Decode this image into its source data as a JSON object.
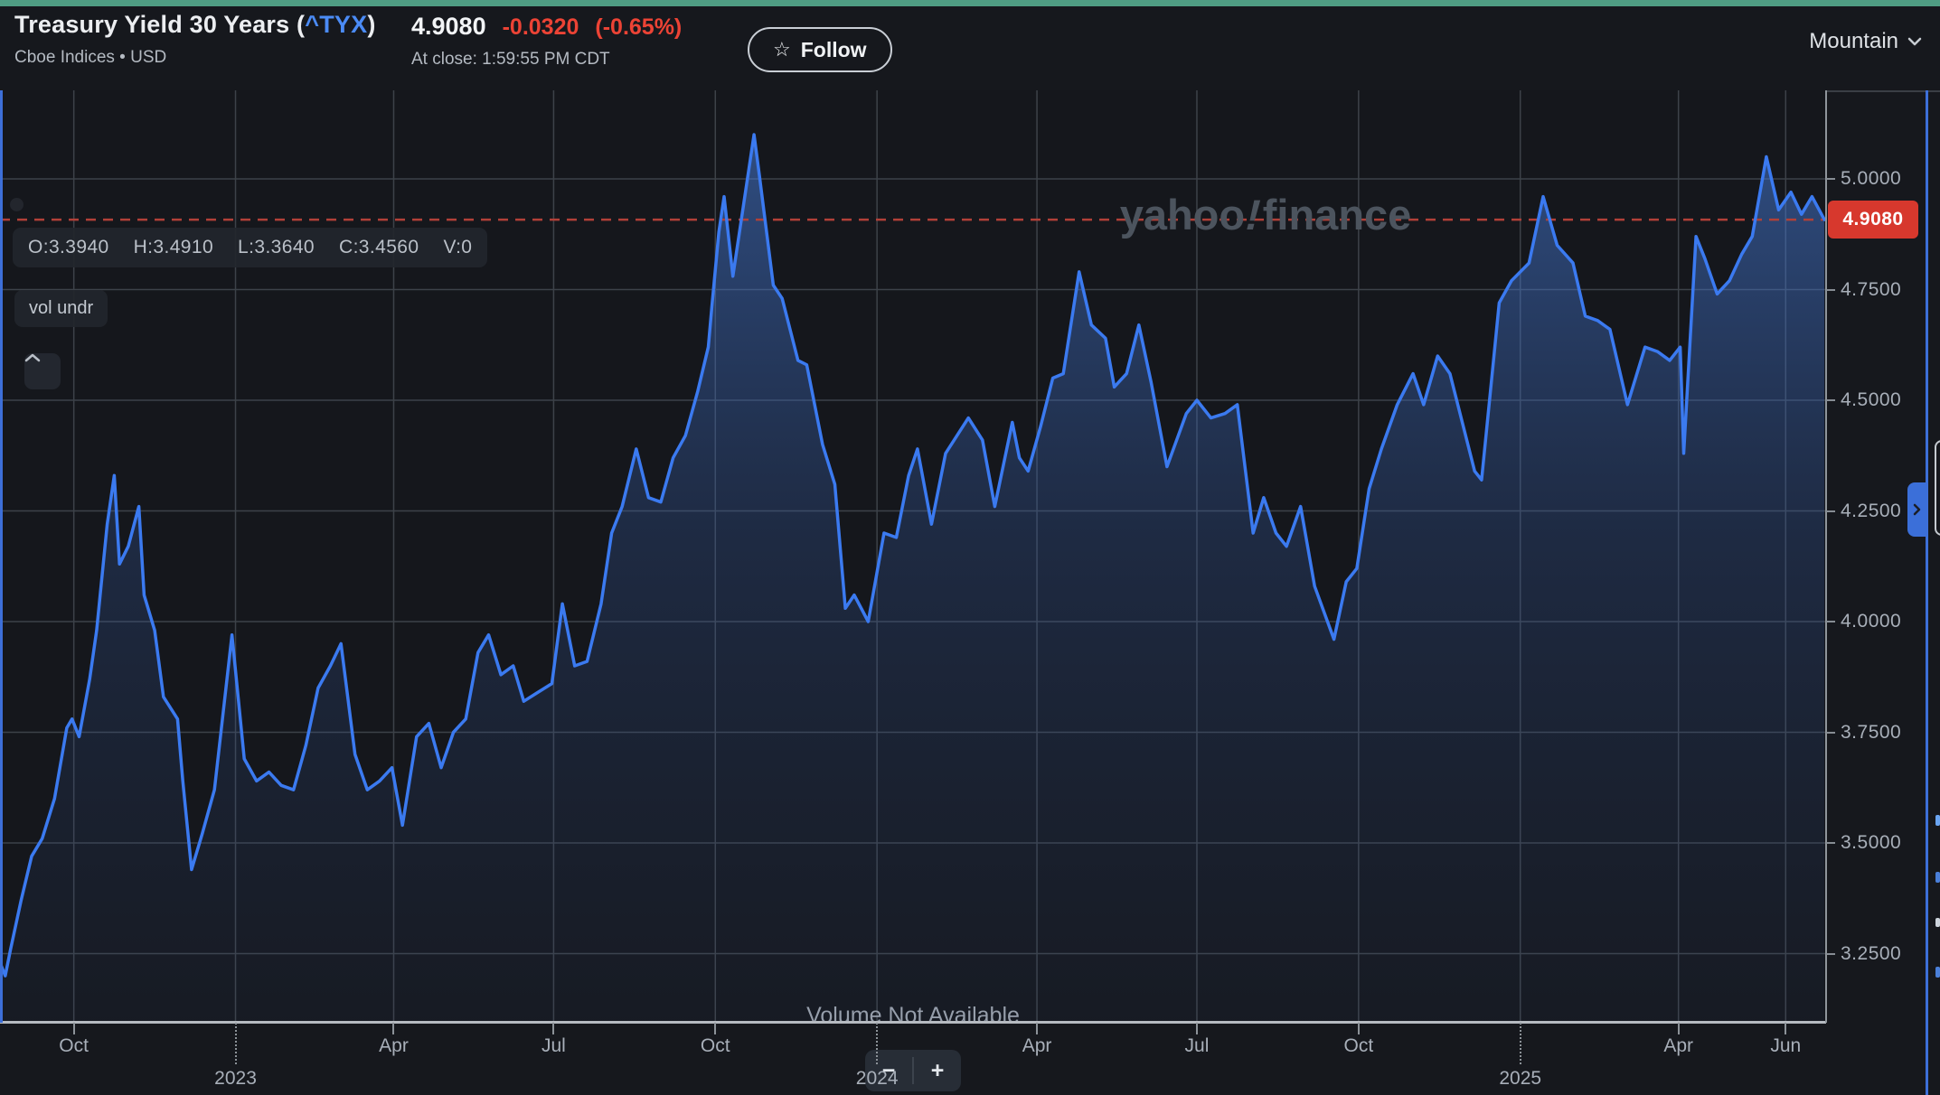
{
  "header": {
    "title_prefix": "Treasury Yield 30 Years (",
    "ticker": "^TYX",
    "title_suffix": ")",
    "subtitle": "Cboe Indices • USD",
    "price": "4.9080",
    "change": "-0.0320",
    "change_pct": "(-0.65%)",
    "at_close": "At close: 1:59:55 PM CDT",
    "follow": {
      "star_icon": "☆",
      "label": "Follow"
    },
    "chart_type_selected": "Mountain"
  },
  "watermark": {
    "yahoo": "yahoo",
    "bang": "!",
    "finance": "finance"
  },
  "overlay": {
    "ohlc": [
      "O:3.3940",
      "H:3.4910",
      "L:3.3640",
      "C:3.4560",
      "V:0"
    ],
    "vol_toggle": "vol undr",
    "volume_message": "Volume Not Available",
    "zoom_out": "−",
    "zoom_in": "+"
  },
  "price_axis": {
    "last_price_tag": "4.9080"
  },
  "colors": {
    "accent_green": "#4f9c83",
    "line_blue": "#3b7af0",
    "divider_blue": "#3d6fd8",
    "change_red": "#ec4335",
    "tag_red": "#d7382d",
    "dashed_red": "#b14038",
    "ticker_blue": "#4b8bf5",
    "grid": "#3d4249"
  },
  "chart_data": {
    "type": "area",
    "title": "Treasury Yield 30 Years (^TYX)",
    "xlabel": "",
    "ylabel": "",
    "x_start": "2022-08-20",
    "x_end": "2025-06-24",
    "ylim": [
      3.094,
      5.2
    ],
    "grid": true,
    "legend": "none",
    "reference_line": {
      "value": 4.908,
      "label": "4.9080"
    },
    "y_ticks": [
      {
        "value": 5.0,
        "label": "5.0000"
      },
      {
        "value": 4.75,
        "label": "4.7500"
      },
      {
        "value": 4.5,
        "label": "4.5000"
      },
      {
        "value": 4.25,
        "label": "4.2500"
      },
      {
        "value": 4.0,
        "label": "4.0000"
      },
      {
        "value": 3.75,
        "label": "3.7500"
      },
      {
        "value": 3.5,
        "label": "3.5000"
      },
      {
        "value": 3.25,
        "label": "3.2500"
      }
    ],
    "x_ticks": [
      {
        "date": "2022-10-01",
        "label": "Oct",
        "kind": "month"
      },
      {
        "date": "2023-01-01",
        "label": "2023",
        "kind": "year"
      },
      {
        "date": "2023-04-01",
        "label": "Apr",
        "kind": "month"
      },
      {
        "date": "2023-07-01",
        "label": "Jul",
        "kind": "month"
      },
      {
        "date": "2023-10-01",
        "label": "Oct",
        "kind": "month"
      },
      {
        "date": "2024-01-01",
        "label": "2024",
        "kind": "year"
      },
      {
        "date": "2024-04-01",
        "label": "Apr",
        "kind": "month"
      },
      {
        "date": "2024-07-01",
        "label": "Jul",
        "kind": "month"
      },
      {
        "date": "2024-10-01",
        "label": "Oct",
        "kind": "month"
      },
      {
        "date": "2025-01-01",
        "label": "2025",
        "kind": "year"
      },
      {
        "date": "2025-04-01",
        "label": "Apr",
        "kind": "month"
      },
      {
        "date": "2025-06-01",
        "label": "Jun",
        "kind": "month"
      }
    ],
    "series": [
      {
        "name": "^TYX yield",
        "points": [
          [
            "2022-08-20",
            3.23
          ],
          [
            "2022-08-23",
            3.2
          ],
          [
            "2022-08-26",
            3.26
          ],
          [
            "2022-09-01",
            3.37
          ],
          [
            "2022-09-07",
            3.47
          ],
          [
            "2022-09-13",
            3.51
          ],
          [
            "2022-09-20",
            3.6
          ],
          [
            "2022-09-27",
            3.76
          ],
          [
            "2022-09-30",
            3.78
          ],
          [
            "2022-10-04",
            3.74
          ],
          [
            "2022-10-10",
            3.87
          ],
          [
            "2022-10-14",
            3.98
          ],
          [
            "2022-10-20",
            4.22
          ],
          [
            "2022-10-24",
            4.33
          ],
          [
            "2022-10-27",
            4.13
          ],
          [
            "2022-11-01",
            4.17
          ],
          [
            "2022-11-07",
            4.26
          ],
          [
            "2022-11-10",
            4.06
          ],
          [
            "2022-11-16",
            3.98
          ],
          [
            "2022-11-21",
            3.83
          ],
          [
            "2022-11-29",
            3.78
          ],
          [
            "2022-12-02",
            3.64
          ],
          [
            "2022-12-07",
            3.44
          ],
          [
            "2022-12-13",
            3.52
          ],
          [
            "2022-12-20",
            3.62
          ],
          [
            "2022-12-30",
            3.97
          ],
          [
            "2023-01-06",
            3.69
          ],
          [
            "2023-01-13",
            3.64
          ],
          [
            "2023-01-20",
            3.66
          ],
          [
            "2023-01-27",
            3.63
          ],
          [
            "2023-02-03",
            3.62
          ],
          [
            "2023-02-10",
            3.72
          ],
          [
            "2023-02-17",
            3.85
          ],
          [
            "2023-02-24",
            3.9
          ],
          [
            "2023-03-02",
            3.95
          ],
          [
            "2023-03-10",
            3.7
          ],
          [
            "2023-03-17",
            3.62
          ],
          [
            "2023-03-24",
            3.64
          ],
          [
            "2023-03-31",
            3.67
          ],
          [
            "2023-04-06",
            3.54
          ],
          [
            "2023-04-14",
            3.74
          ],
          [
            "2023-04-21",
            3.77
          ],
          [
            "2023-04-28",
            3.67
          ],
          [
            "2023-05-05",
            3.75
          ],
          [
            "2023-05-12",
            3.78
          ],
          [
            "2023-05-19",
            3.93
          ],
          [
            "2023-05-25",
            3.97
          ],
          [
            "2023-06-01",
            3.88
          ],
          [
            "2023-06-08",
            3.9
          ],
          [
            "2023-06-14",
            3.82
          ],
          [
            "2023-06-22",
            3.84
          ],
          [
            "2023-06-30",
            3.86
          ],
          [
            "2023-07-06",
            4.04
          ],
          [
            "2023-07-13",
            3.9
          ],
          [
            "2023-07-20",
            3.91
          ],
          [
            "2023-07-28",
            4.04
          ],
          [
            "2023-08-03",
            4.2
          ],
          [
            "2023-08-09",
            4.26
          ],
          [
            "2023-08-17",
            4.39
          ],
          [
            "2023-08-24",
            4.28
          ],
          [
            "2023-08-31",
            4.27
          ],
          [
            "2023-09-07",
            4.37
          ],
          [
            "2023-09-14",
            4.42
          ],
          [
            "2023-09-21",
            4.52
          ],
          [
            "2023-09-27",
            4.62
          ],
          [
            "2023-09-29",
            4.71
          ],
          [
            "2023-10-03",
            4.88
          ],
          [
            "2023-10-06",
            4.96
          ],
          [
            "2023-10-11",
            4.78
          ],
          [
            "2023-10-23",
            5.1
          ],
          [
            "2023-10-26",
            5.01
          ],
          [
            "2023-11-03",
            4.76
          ],
          [
            "2023-11-08",
            4.73
          ],
          [
            "2023-11-17",
            4.59
          ],
          [
            "2023-11-22",
            4.58
          ],
          [
            "2023-12-01",
            4.4
          ],
          [
            "2023-12-08",
            4.31
          ],
          [
            "2023-12-14",
            4.03
          ],
          [
            "2023-12-19",
            4.06
          ],
          [
            "2023-12-27",
            4.0
          ],
          [
            "2024-01-05",
            4.2
          ],
          [
            "2024-01-12",
            4.19
          ],
          [
            "2024-01-19",
            4.33
          ],
          [
            "2024-01-24",
            4.39
          ],
          [
            "2024-02-01",
            4.22
          ],
          [
            "2024-02-09",
            4.38
          ],
          [
            "2024-02-22",
            4.46
          ],
          [
            "2024-03-01",
            4.41
          ],
          [
            "2024-03-08",
            4.26
          ],
          [
            "2024-03-18",
            4.45
          ],
          [
            "2024-03-22",
            4.37
          ],
          [
            "2024-03-27",
            4.34
          ],
          [
            "2024-04-03",
            4.44
          ],
          [
            "2024-04-10",
            4.55
          ],
          [
            "2024-04-16",
            4.56
          ],
          [
            "2024-04-25",
            4.79
          ],
          [
            "2024-05-02",
            4.67
          ],
          [
            "2024-05-10",
            4.64
          ],
          [
            "2024-05-15",
            4.53
          ],
          [
            "2024-05-22",
            4.56
          ],
          [
            "2024-05-29",
            4.67
          ],
          [
            "2024-06-05",
            4.54
          ],
          [
            "2024-06-14",
            4.35
          ],
          [
            "2024-06-25",
            4.47
          ],
          [
            "2024-07-01",
            4.5
          ],
          [
            "2024-07-09",
            4.46
          ],
          [
            "2024-07-17",
            4.47
          ],
          [
            "2024-07-24",
            4.49
          ],
          [
            "2024-08-02",
            4.2
          ],
          [
            "2024-08-08",
            4.28
          ],
          [
            "2024-08-15",
            4.2
          ],
          [
            "2024-08-21",
            4.17
          ],
          [
            "2024-08-29",
            4.26
          ],
          [
            "2024-09-06",
            4.08
          ],
          [
            "2024-09-17",
            3.96
          ],
          [
            "2024-09-24",
            4.09
          ],
          [
            "2024-09-30",
            4.12
          ],
          [
            "2024-10-07",
            4.3
          ],
          [
            "2024-10-14",
            4.39
          ],
          [
            "2024-10-23",
            4.49
          ],
          [
            "2024-11-01",
            4.56
          ],
          [
            "2024-11-07",
            4.49
          ],
          [
            "2024-11-15",
            4.6
          ],
          [
            "2024-11-22",
            4.56
          ],
          [
            "2024-12-06",
            4.34
          ],
          [
            "2024-12-10",
            4.32
          ],
          [
            "2024-12-17",
            4.6
          ],
          [
            "2024-12-20",
            4.72
          ],
          [
            "2024-12-27",
            4.77
          ],
          [
            "2025-01-06",
            4.81
          ],
          [
            "2025-01-14",
            4.96
          ],
          [
            "2025-01-22",
            4.85
          ],
          [
            "2025-01-31",
            4.81
          ],
          [
            "2025-02-07",
            4.69
          ],
          [
            "2025-02-14",
            4.68
          ],
          [
            "2025-02-21",
            4.66
          ],
          [
            "2025-03-03",
            4.49
          ],
          [
            "2025-03-13",
            4.62
          ],
          [
            "2025-03-20",
            4.61
          ],
          [
            "2025-03-27",
            4.59
          ],
          [
            "2025-04-02",
            4.62
          ],
          [
            "2025-04-04",
            4.38
          ],
          [
            "2025-04-11",
            4.87
          ],
          [
            "2025-04-16",
            4.82
          ],
          [
            "2025-04-23",
            4.74
          ],
          [
            "2025-04-30",
            4.77
          ],
          [
            "2025-05-07",
            4.83
          ],
          [
            "2025-05-13",
            4.87
          ],
          [
            "2025-05-21",
            5.05
          ],
          [
            "2025-05-28",
            4.93
          ],
          [
            "2025-06-04",
            4.97
          ],
          [
            "2025-06-10",
            4.92
          ],
          [
            "2025-06-16",
            4.96
          ],
          [
            "2025-06-23",
            4.908
          ]
        ]
      }
    ]
  }
}
